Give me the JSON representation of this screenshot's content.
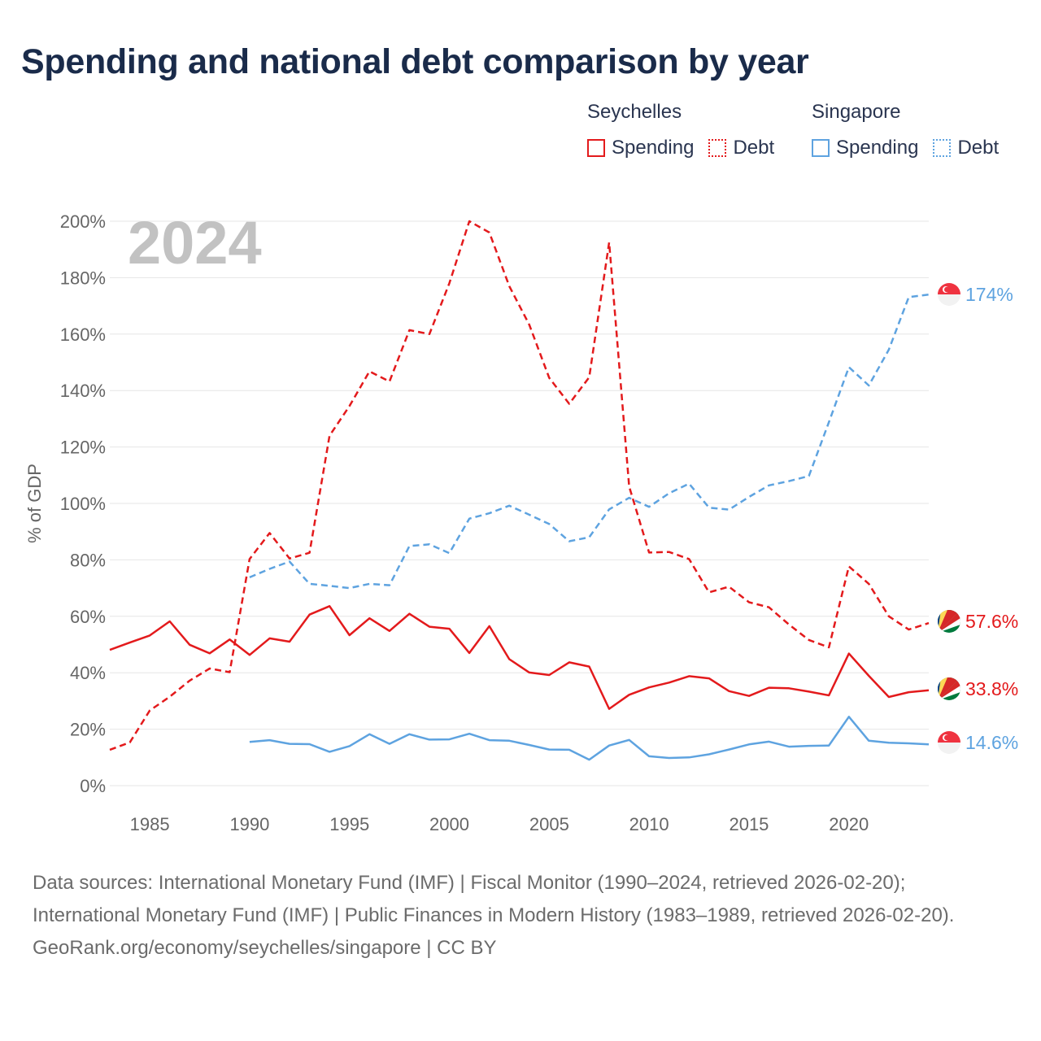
{
  "title": "Spending and national debt comparison by year",
  "legend": {
    "groups": [
      {
        "name": "Seychelles",
        "items": [
          {
            "label": "Spending"
          },
          {
            "label": "Debt"
          }
        ]
      },
      {
        "name": "Singapore",
        "items": [
          {
            "label": "Spending"
          },
          {
            "label": "Debt"
          }
        ]
      }
    ]
  },
  "colors": {
    "seychelles": "#e31a1c",
    "singapore": "#5ea3e0",
    "grid": "#e6e6e6",
    "axis_text": "#666666",
    "year_label": "#c2c2c2"
  },
  "footer": {
    "source": "Data sources: International Monetary Fund (IMF) | Fiscal Monitor (1990–2024, retrieved 2026-02-20); International Monetary Fund (IMF) | Public Finances in Modern History (1983–1989, retrieved 2026-02-20).",
    "credit": "GeoRank.org/economy/seychelles/singapore | CC BY"
  },
  "chart_data": {
    "type": "line",
    "title": "Spending and national debt comparison by year",
    "year_label": "2024",
    "ylabel": "% of GDP",
    "xlabel": "",
    "xlim": [
      1983,
      2024
    ],
    "ylim": [
      0,
      200
    ],
    "x_ticks": [
      1985,
      1990,
      1995,
      2000,
      2005,
      2010,
      2015,
      2020
    ],
    "y_ticks": [
      0,
      20,
      40,
      60,
      80,
      100,
      120,
      140,
      160,
      180,
      200
    ],
    "y_tick_labels": [
      "0%",
      "20%",
      "40%",
      "60%",
      "80%",
      "100%",
      "120%",
      "140%",
      "160%",
      "180%",
      "200%"
    ],
    "grid": true,
    "series": [
      {
        "name": "Seychelles Debt",
        "country": "Seychelles",
        "metric": "Debt",
        "style": "dashed",
        "color": "#e31a1c",
        "end_label": "57.6%",
        "x": [
          1983,
          1984,
          1985,
          1986,
          1987,
          1988,
          1989,
          1990,
          1991,
          1992,
          1993,
          1994,
          1995,
          1996,
          1997,
          1998,
          1999,
          2000,
          2001,
          2002,
          2003,
          2004,
          2005,
          2006,
          2007,
          2008,
          2009,
          2010,
          2011,
          2012,
          2013,
          2014,
          2015,
          2016,
          2017,
          2018,
          2019,
          2020,
          2021,
          2022,
          2023,
          2024
        ],
        "values": [
          12.7,
          15.3,
          26.6,
          31.5,
          37.2,
          41.5,
          40.2,
          80.3,
          89.5,
          80.5,
          82.5,
          124,
          134.5,
          146.8,
          143.2,
          161.4,
          160,
          178,
          200,
          196,
          177,
          163.3,
          144.5,
          135.3,
          144.7,
          192.5,
          106,
          82.6,
          82.8,
          80.3,
          68.5,
          70.5,
          65,
          63.2,
          57.1,
          51.6,
          49,
          77.7,
          71.5,
          60,
          55.3,
          57.6
        ]
      },
      {
        "name": "Singapore Debt",
        "country": "Singapore",
        "metric": "Debt",
        "style": "dashed",
        "color": "#5ea3e0",
        "end_label": "174%",
        "x": [
          1990,
          1991,
          1992,
          1993,
          1994,
          1995,
          1996,
          1997,
          1998,
          1999,
          2000,
          2001,
          2002,
          2003,
          2004,
          2005,
          2006,
          2007,
          2008,
          2009,
          2010,
          2011,
          2012,
          2013,
          2014,
          2015,
          2016,
          2017,
          2018,
          2019,
          2020,
          2021,
          2022,
          2023,
          2024
        ],
        "values": [
          73.8,
          76.8,
          79.4,
          71.5,
          70.8,
          70,
          71.5,
          71,
          84.9,
          85.5,
          82.4,
          94.6,
          96.5,
          99.2,
          96,
          92.7,
          86.6,
          88,
          97.9,
          102,
          98.8,
          103.6,
          107,
          98.5,
          97.8,
          102.3,
          106.4,
          107.9,
          109.7,
          128.8,
          148.3,
          141.8,
          154.5,
          173.1,
          174
        ]
      },
      {
        "name": "Seychelles Spending",
        "country": "Seychelles",
        "metric": "Spending",
        "style": "solid",
        "color": "#e31a1c",
        "end_label": "33.8%",
        "x": [
          1983,
          1984,
          1985,
          1986,
          1987,
          1988,
          1989,
          1990,
          1991,
          1992,
          1993,
          1994,
          1995,
          1996,
          1997,
          1998,
          1999,
          2000,
          2001,
          2002,
          2003,
          2004,
          2005,
          2006,
          2007,
          2008,
          2009,
          2010,
          2011,
          2012,
          2013,
          2014,
          2015,
          2016,
          2017,
          2018,
          2019,
          2020,
          2021,
          2022,
          2023,
          2024
        ],
        "values": [
          48.1,
          50.7,
          53.2,
          58.2,
          49.9,
          46.9,
          51.8,
          46.3,
          52.2,
          51,
          60.6,
          63.6,
          53.3,
          59.3,
          54.8,
          60.9,
          56.3,
          55.6,
          47,
          56.5,
          44.8,
          40.1,
          39.2,
          43.7,
          42.2,
          27.2,
          32.2,
          34.8,
          36.5,
          38.8,
          38,
          33.5,
          31.8,
          34.7,
          34.5,
          33.3,
          32,
          46.8,
          38.9,
          31.4,
          33.1,
          33.8
        ]
      },
      {
        "name": "Singapore Spending",
        "country": "Singapore",
        "metric": "Spending",
        "style": "solid",
        "color": "#5ea3e0",
        "end_label": "14.6%",
        "x": [
          1990,
          1991,
          1992,
          1993,
          1994,
          1995,
          1996,
          1997,
          1998,
          1999,
          2000,
          2001,
          2002,
          2003,
          2004,
          2005,
          2006,
          2007,
          2008,
          2009,
          2010,
          2011,
          2012,
          2013,
          2014,
          2015,
          2016,
          2017,
          2018,
          2019,
          2020,
          2021,
          2022,
          2023,
          2024
        ],
        "values": [
          15.5,
          16.1,
          14.8,
          14.7,
          12,
          14,
          18.2,
          14.8,
          18.2,
          16.3,
          16.4,
          18.4,
          16.1,
          15.9,
          14.4,
          12.8,
          12.7,
          9.2,
          14.2,
          16.2,
          10.4,
          9.8,
          10,
          11.1,
          12.8,
          14.6,
          15.6,
          13.8,
          14.1,
          14.2,
          24.4,
          15.9,
          15.2,
          15,
          14.6
        ]
      }
    ]
  }
}
